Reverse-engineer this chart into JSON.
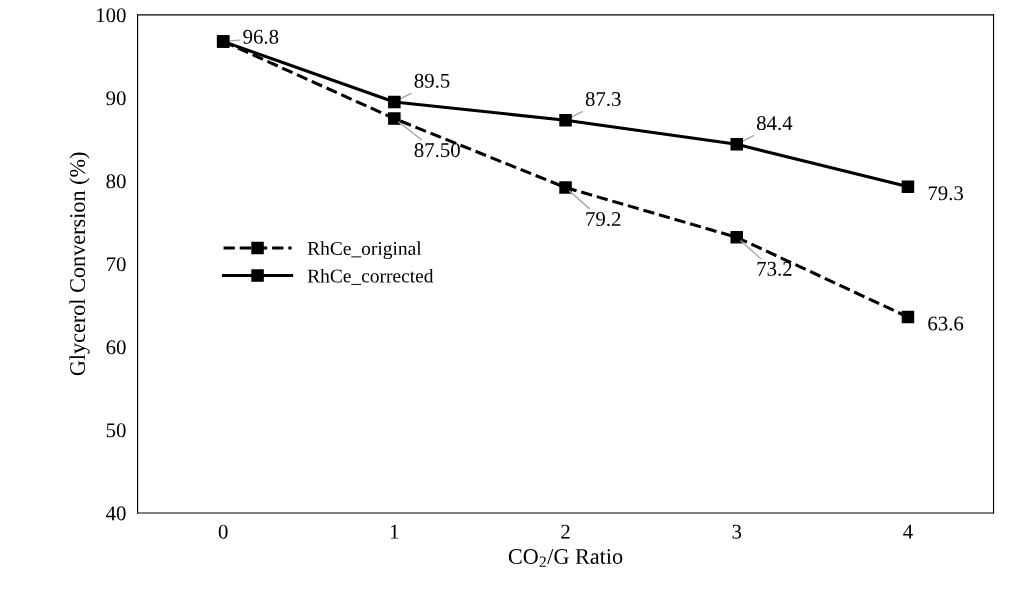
{
  "chart_data": {
    "type": "line",
    "xlabel": "CO$_{2}$/G Ratio",
    "ylabel": "Glycerol Conversion (%)",
    "categories": [
      "0",
      "1",
      "2",
      "3",
      "4"
    ],
    "series": [
      {
        "name": "RhCe_original",
        "color": "#000000",
        "line_style": "dashed",
        "values": [
          96.8,
          87.5,
          79.2,
          73.2,
          63.6
        ],
        "value_labels": [
          null,
          "87.50",
          "79.2",
          "73.2",
          "63.6"
        ]
      },
      {
        "name": "RhCe_corrected",
        "color": "#000000",
        "line_style": "solid",
        "values": [
          96.8,
          89.5,
          87.3,
          84.4,
          79.3
        ],
        "value_labels": [
          "96.8",
          "89.5",
          "87.3",
          "84.4",
          "79.3"
        ]
      }
    ],
    "marker": "square",
    "ylim": [
      40,
      100
    ],
    "yticks": [
      40,
      50,
      60,
      70,
      80,
      90,
      100
    ],
    "grid": false,
    "legend": "center left"
  }
}
